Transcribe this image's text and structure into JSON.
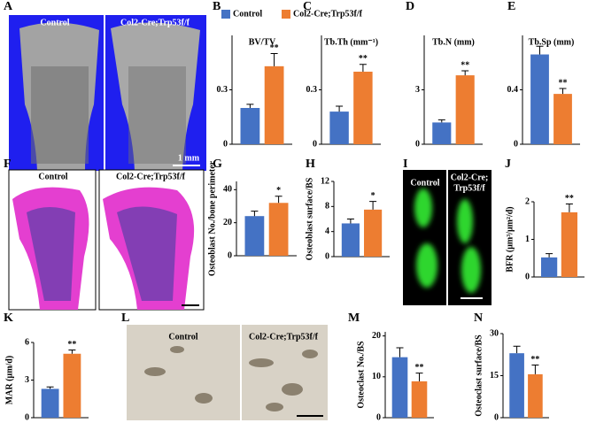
{
  "panel_labels": [
    "A",
    "B",
    "C",
    "D",
    "E",
    "F",
    "G",
    "H",
    "I",
    "J",
    "K",
    "L",
    "M",
    "N"
  ],
  "legend": [
    {
      "name": "Control",
      "color": "#4472c4"
    },
    {
      "name": "Col2-Cre;Trp53f/f",
      "color": "#ed7d31"
    }
  ],
  "images": [
    {
      "labels": [
        "Control",
        "Col2-Cre;Trp53f/f"
      ],
      "scale_bar": "1 mm"
    },
    {
      "labels": [
        "Control",
        "Col2-Cre;Trp53f/f"
      ]
    },
    {
      "labels": [
        "Control",
        "Col2-Cre;",
        "Trp53f/f"
      ]
    },
    {
      "labels": [
        "Control",
        "Col2-Cre;Trp53f/f"
      ]
    }
  ],
  "chart_data": [
    {
      "type": "bar",
      "title": "BV/TV",
      "values": [
        0.2,
        0.43
      ],
      "errors": [
        0.02,
        0.07
      ],
      "annotation": "**",
      "ylim": [
        0,
        0.6
      ],
      "yticks": [
        0,
        0.3
      ]
    },
    {
      "type": "bar",
      "title": "Tb.Th (mm⁻¹)",
      "values": [
        0.18,
        0.4
      ],
      "errors": [
        0.03,
        0.04
      ],
      "annotation": "**",
      "ylim": [
        0,
        0.6
      ],
      "yticks": [
        0,
        0.3
      ]
    },
    {
      "type": "bar",
      "title": "Tb.N (mm)",
      "values": [
        1.2,
        3.8
      ],
      "errors": [
        0.15,
        0.25
      ],
      "annotation": "**",
      "ylim": [
        0,
        6
      ],
      "yticks": [
        0,
        3
      ]
    },
    {
      "type": "bar",
      "title": "Tb.Sp (mm)",
      "values": [
        0.66,
        0.37
      ],
      "errors": [
        0.06,
        0.04
      ],
      "annotation": "**",
      "ylim": [
        0,
        0.8
      ],
      "yticks": [
        0,
        0.4
      ]
    },
    {
      "type": "bar",
      "ylabel": "Osteoblast No./bone perimeter",
      "values": [
        24,
        32
      ],
      "errors": [
        3,
        4
      ],
      "annotation": "*",
      "ylim": [
        0,
        45
      ],
      "yticks": [
        0,
        20,
        40
      ]
    },
    {
      "type": "bar",
      "ylabel": "Osteoblast surface/BS",
      "values": [
        5.3,
        7.5
      ],
      "errors": [
        0.7,
        1.3
      ],
      "annotation": "*",
      "ylim": [
        0,
        12
      ],
      "yticks": [
        0,
        4,
        8,
        12
      ]
    },
    {
      "type": "bar",
      "ylabel": "BFR (μm³/μm²/d)",
      "values": [
        0.52,
        1.72
      ],
      "errors": [
        0.1,
        0.22
      ],
      "annotation": "**",
      "ylim": [
        0,
        2
      ],
      "yticks": [
        0,
        1,
        2
      ]
    },
    {
      "type": "bar",
      "ylabel": "MAR (μm/d)",
      "values": [
        2.3,
        5.1
      ],
      "errors": [
        0.15,
        0.3
      ],
      "annotation": "**",
      "ylim": [
        0,
        6
      ],
      "yticks": [
        0,
        3,
        6
      ]
    },
    {
      "type": "bar",
      "ylabel": "Osteoclast No./BS",
      "values": [
        14.8,
        8.9
      ],
      "errors": [
        2.3,
        2
      ],
      "annotation": "**",
      "ylim": [
        0,
        21
      ],
      "yticks": [
        0,
        10,
        20
      ]
    },
    {
      "type": "bar",
      "ylabel": "Osteoclast surface/BS",
      "values": [
        23,
        15.5
      ],
      "errors": [
        2.5,
        3.3
      ],
      "annotation": "**",
      "ylim": [
        0,
        30
      ],
      "yticks": [
        0,
        15,
        30
      ]
    }
  ]
}
